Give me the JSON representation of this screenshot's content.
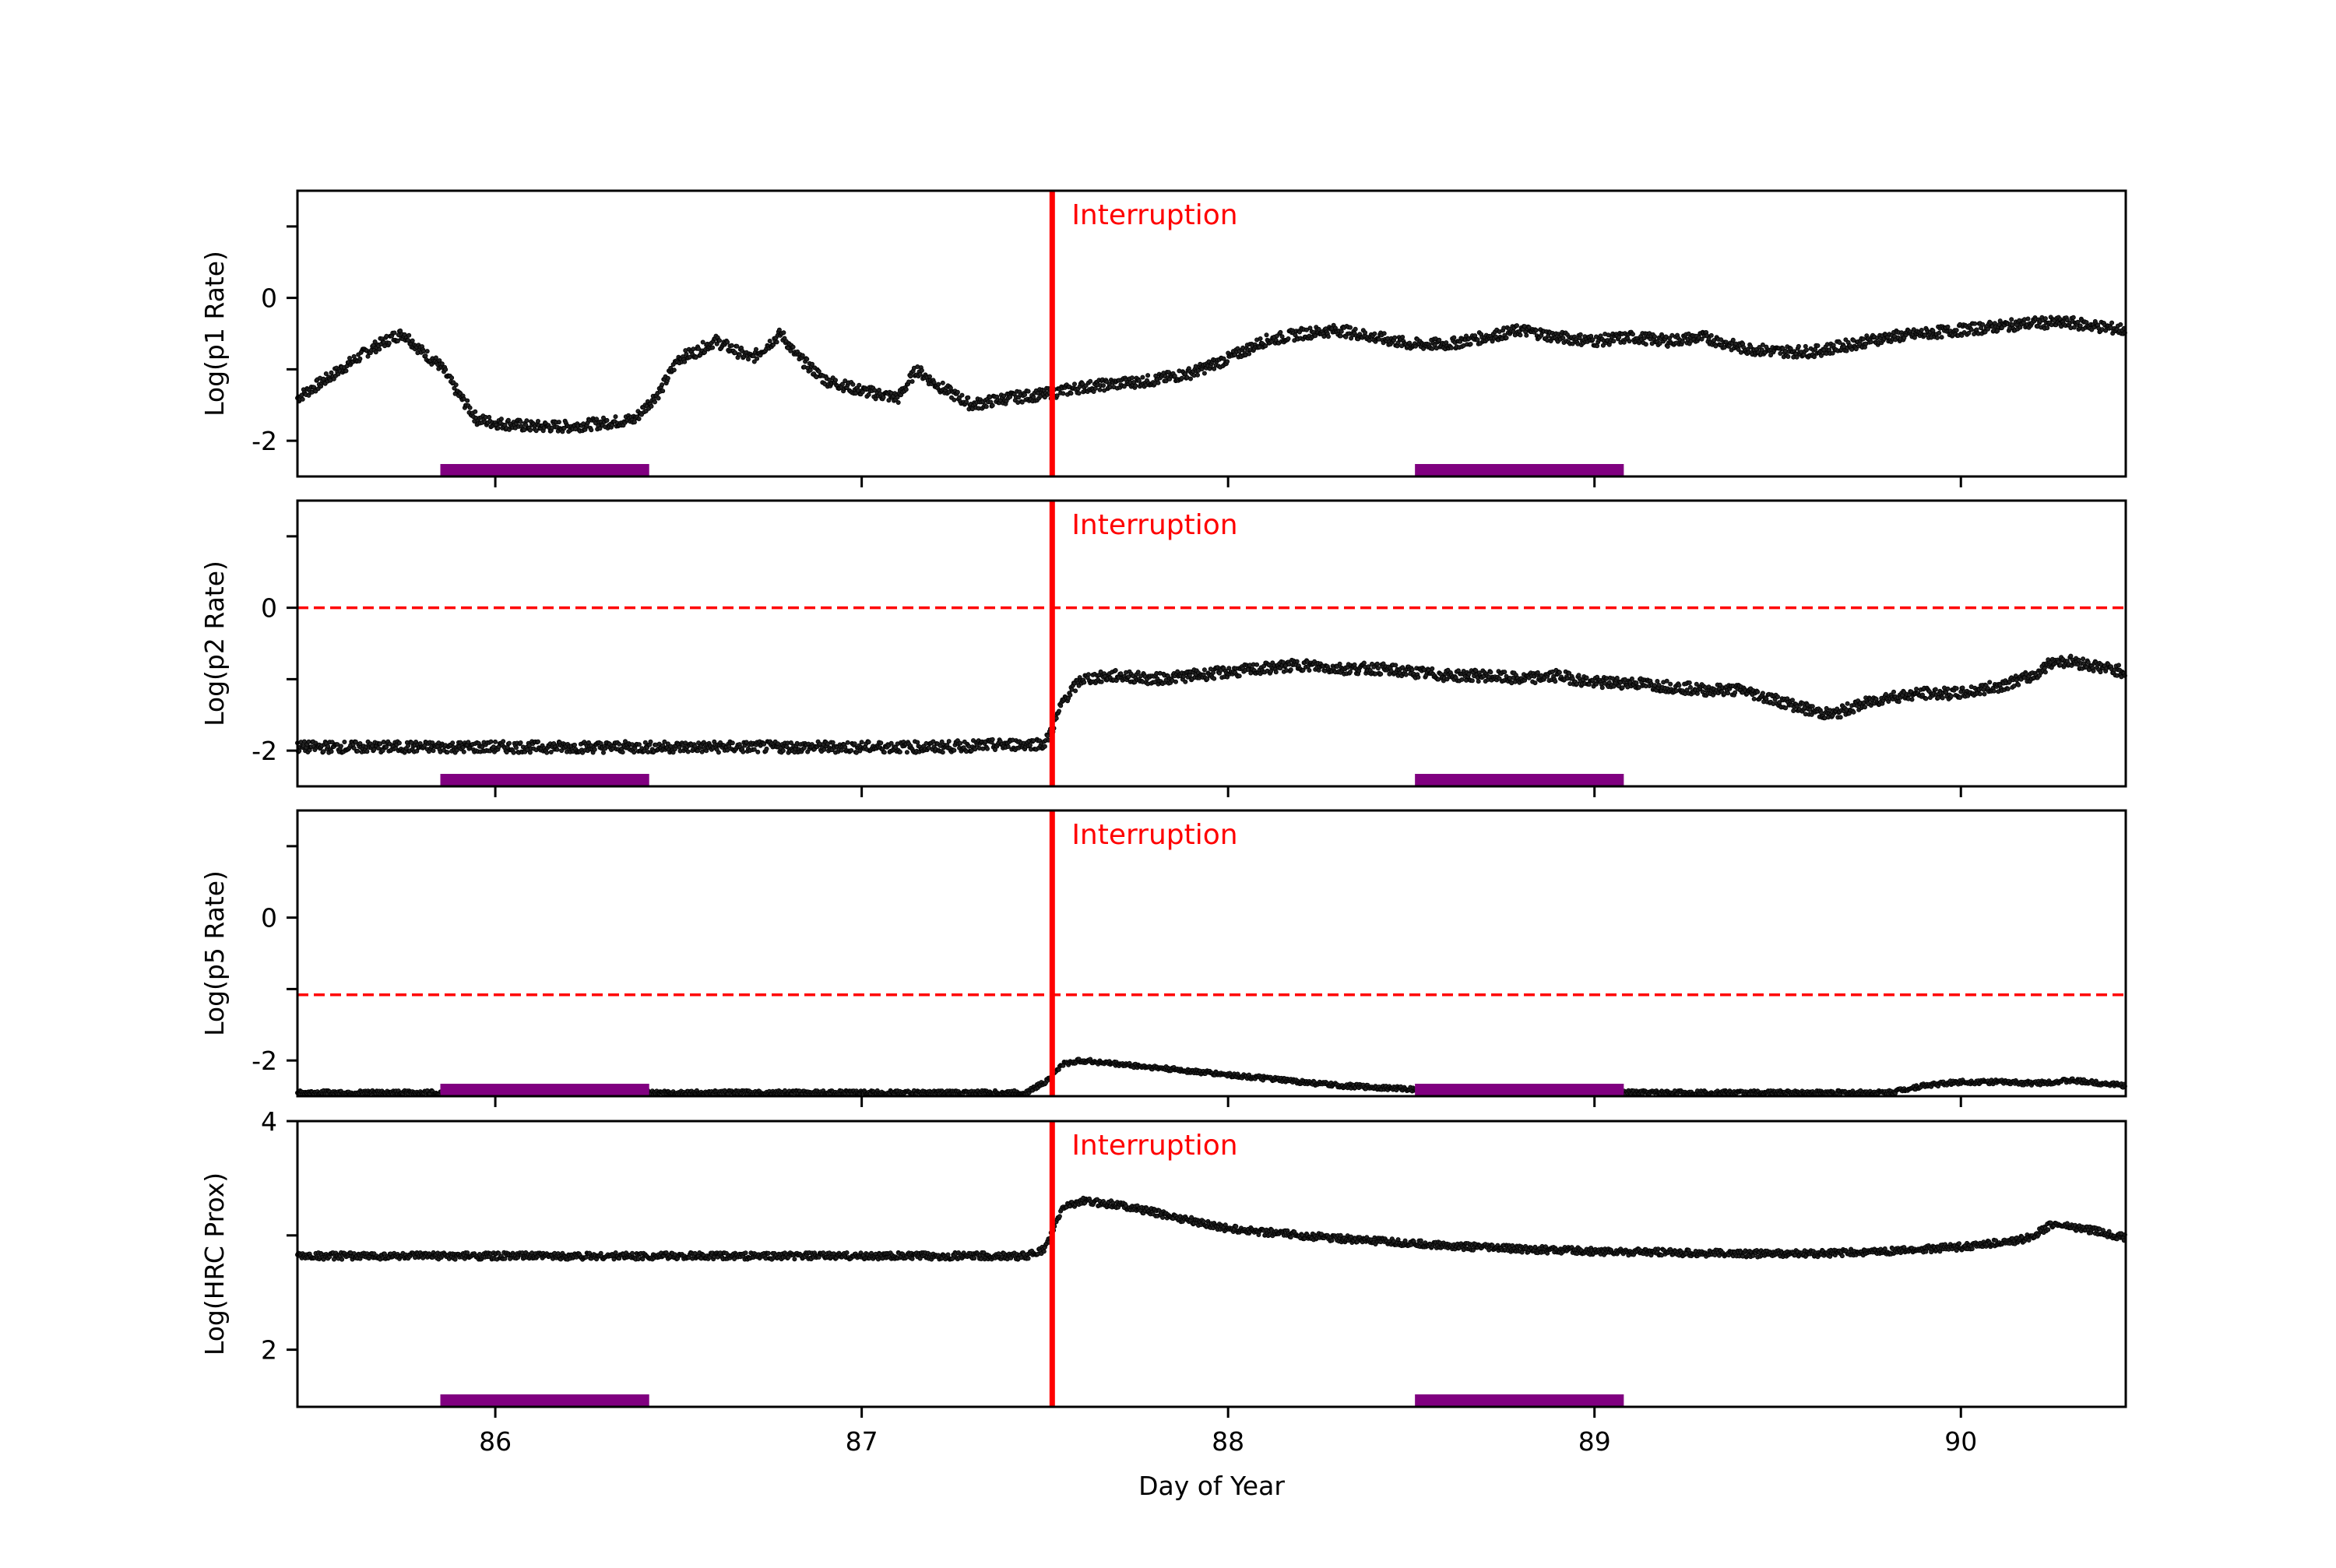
{
  "chart_data": {
    "type": "scatter",
    "title": "",
    "xlabel": "Day of Year",
    "xlim": [
      85.46,
      90.45
    ],
    "x_ticks": [
      86,
      87,
      88,
      89,
      90
    ],
    "x_tick_labels": [
      "86",
      "87",
      "88",
      "89",
      "90"
    ],
    "colors": {
      "points": "#000000",
      "interruption": "#ff0000",
      "threshold": "#ff0000",
      "shaded_interval": "#800080",
      "frame": "#000000"
    },
    "annotation": {
      "text": "Interruption",
      "x": 87.52,
      "style": "solid vertical red line on all panels"
    },
    "shaded_intervals": [
      {
        "start": 85.85,
        "end": 86.42
      },
      {
        "start": 88.51,
        "end": 89.08
      }
    ],
    "panels": [
      {
        "name": "p1",
        "ylabel": "Log(p1 Rate)",
        "ylim": [
          -2.5,
          1.5
        ],
        "y_ticks": [
          -2,
          -1,
          0,
          1
        ],
        "y_tick_labels": [
          "-2",
          "",
          "0",
          ""
        ],
        "threshold": null,
        "series": {
          "x": [
            85.46,
            85.55,
            85.65,
            85.72,
            85.75,
            85.8,
            85.85,
            85.9,
            85.95,
            86.0,
            86.1,
            86.2,
            86.3,
            86.38,
            86.45,
            86.5,
            86.55,
            86.6,
            86.7,
            86.78,
            86.82,
            86.9,
            87.0,
            87.1,
            87.15,
            87.2,
            87.25,
            87.3,
            87.4,
            87.5,
            87.6,
            87.7,
            87.8,
            87.9,
            88.0,
            88.1,
            88.2,
            88.3,
            88.4,
            88.5,
            88.6,
            88.7,
            88.8,
            88.9,
            89.0,
            89.1,
            89.2,
            89.3,
            89.4,
            89.5,
            89.6,
            89.7,
            89.8,
            89.9,
            90.0,
            90.1,
            90.2,
            90.3,
            90.45
          ],
          "y": [
            -1.4,
            -1.1,
            -0.75,
            -0.55,
            -0.5,
            -0.75,
            -0.95,
            -1.35,
            -1.7,
            -1.75,
            -1.8,
            -1.8,
            -1.75,
            -1.7,
            -1.3,
            -0.85,
            -0.75,
            -0.6,
            -0.85,
            -0.5,
            -0.8,
            -1.15,
            -1.3,
            -1.4,
            -1.0,
            -1.2,
            -1.35,
            -1.5,
            -1.4,
            -1.35,
            -1.25,
            -1.2,
            -1.15,
            -1.05,
            -0.85,
            -0.6,
            -0.5,
            -0.45,
            -0.55,
            -0.65,
            -0.65,
            -0.55,
            -0.45,
            -0.55,
            -0.6,
            -0.55,
            -0.6,
            -0.55,
            -0.7,
            -0.75,
            -0.75,
            -0.65,
            -0.55,
            -0.5,
            -0.45,
            -0.4,
            -0.35,
            -0.35,
            -0.45
          ]
        }
      },
      {
        "name": "p2",
        "ylabel": "Log(p2 Rate)",
        "ylim": [
          -2.5,
          1.5
        ],
        "y_ticks": [
          -2,
          -1,
          0,
          1
        ],
        "y_tick_labels": [
          "-2",
          "",
          "0",
          ""
        ],
        "threshold": 0.0,
        "series": {
          "x": [
            85.46,
            85.7,
            86.0,
            86.3,
            86.6,
            86.9,
            87.2,
            87.5,
            87.52,
            87.55,
            87.6,
            87.7,
            87.8,
            87.9,
            88.0,
            88.1,
            88.2,
            88.3,
            88.4,
            88.5,
            88.6,
            88.7,
            88.8,
            88.9,
            89.0,
            89.1,
            89.2,
            89.3,
            89.4,
            89.5,
            89.6,
            89.65,
            89.7,
            89.8,
            89.9,
            90.0,
            90.1,
            90.2,
            90.25,
            90.3,
            90.45
          ],
          "y": [
            -1.95,
            -1.95,
            -1.95,
            -1.95,
            -1.95,
            -1.95,
            -1.95,
            -1.9,
            -1.7,
            -1.3,
            -1.0,
            -0.95,
            -1.0,
            -0.95,
            -0.9,
            -0.85,
            -0.8,
            -0.85,
            -0.85,
            -0.9,
            -0.95,
            -0.95,
            -1.0,
            -0.95,
            -1.05,
            -1.05,
            -1.1,
            -1.15,
            -1.15,
            -1.3,
            -1.45,
            -1.5,
            -1.4,
            -1.25,
            -1.2,
            -1.2,
            -1.1,
            -0.95,
            -0.75,
            -0.75,
            -0.9
          ]
        }
      },
      {
        "name": "p5",
        "ylabel": "Log(p5 Rate)",
        "ylim": [
          -2.5,
          1.5
        ],
        "y_ticks": [
          -2,
          -1,
          0,
          1
        ],
        "y_tick_labels": [
          "-2",
          "",
          "0",
          ""
        ],
        "threshold": -1.08,
        "series": {
          "x": [
            85.46,
            86.0,
            86.5,
            87.0,
            87.45,
            87.5,
            87.55,
            87.6,
            87.7,
            87.8,
            87.9,
            88.0,
            88.1,
            88.2,
            88.3,
            88.5,
            88.8,
            89.1,
            89.5,
            89.8,
            89.9,
            90.0,
            90.1,
            90.2,
            90.3,
            90.45
          ],
          "y": [
            -2.45,
            -2.45,
            -2.45,
            -2.45,
            -2.45,
            -2.3,
            -2.05,
            -2.0,
            -2.05,
            -2.1,
            -2.15,
            -2.2,
            -2.25,
            -2.3,
            -2.35,
            -2.4,
            -2.45,
            -2.45,
            -2.45,
            -2.45,
            -2.35,
            -2.3,
            -2.3,
            -2.32,
            -2.28,
            -2.35
          ]
        }
      },
      {
        "name": "hrc",
        "ylabel": "Log(HRC Prox)",
        "ylim": [
          1.5,
          4.0
        ],
        "y_ticks": [
          2,
          3,
          4
        ],
        "y_tick_labels": [
          "2",
          "",
          "4"
        ],
        "threshold": null,
        "series": {
          "x": [
            85.46,
            86.0,
            86.5,
            87.0,
            87.45,
            87.5,
            87.55,
            87.6,
            87.7,
            87.8,
            87.9,
            88.0,
            88.2,
            88.4,
            88.6,
            88.8,
            89.0,
            89.2,
            89.4,
            89.6,
            89.8,
            90.0,
            90.15,
            90.2,
            90.25,
            90.35,
            90.45
          ],
          "y": [
            2.82,
            2.82,
            2.82,
            2.82,
            2.82,
            2.88,
            3.25,
            3.3,
            3.27,
            3.2,
            3.13,
            3.06,
            3.0,
            2.95,
            2.91,
            2.88,
            2.86,
            2.85,
            2.84,
            2.84,
            2.86,
            2.9,
            2.95,
            3.0,
            3.1,
            3.05,
            2.98
          ]
        }
      }
    ],
    "legend": null
  }
}
